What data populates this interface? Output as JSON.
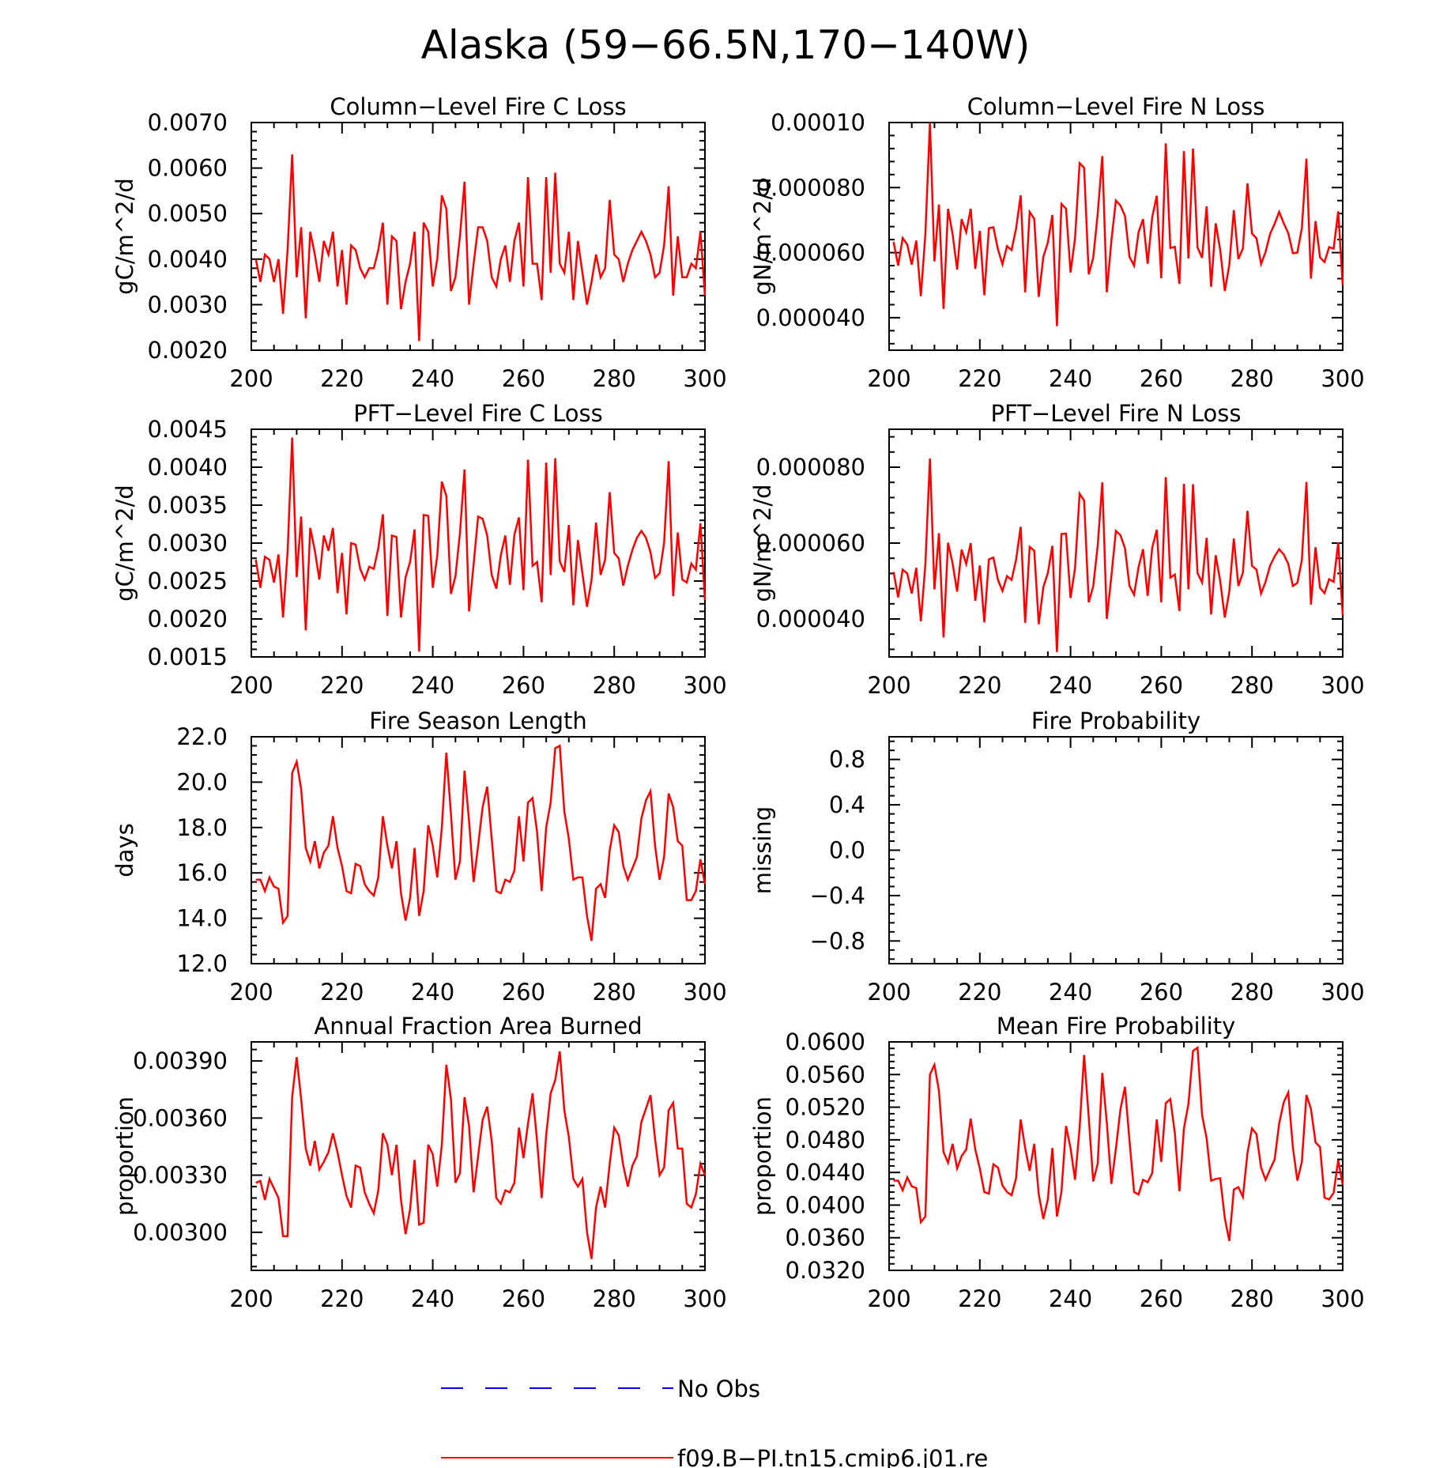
{
  "title": "Alaska (59−66.5N,170−140W)",
  "colors": {
    "model": "#ff0000",
    "obs": "#0000ff",
    "axis": "#000000"
  },
  "legend": {
    "entries": [
      {
        "label": "No Obs",
        "style": "dashed",
        "color": "#0000ff"
      },
      {
        "label": "f09.B−PI.tn15.cmip6.j01.re",
        "style": "solid",
        "color": "#ff0000"
      }
    ]
  },
  "chart_data": [
    {
      "type": "line",
      "title": "Column−Level Fire C Loss",
      "ylabel": "gC/m^2/d",
      "xlim": [
        200,
        300
      ],
      "ylim": [
        0.002,
        0.007
      ],
      "x_ticks": [
        200,
        220,
        240,
        260,
        280,
        300
      ],
      "y_ticks": [
        0.002,
        0.003,
        0.004,
        0.005,
        0.006,
        0.007
      ],
      "y_tick_labels": [
        "0.0020",
        "0.0030",
        "0.0040",
        "0.0050",
        "0.0060",
        "0.0070"
      ],
      "x_start": 201,
      "series": [
        {
          "values": [
            0.004,
            0.0035,
            0.0041,
            0.004,
            0.0035,
            0.004,
            0.0028,
            0.0042,
            0.0063,
            0.0036,
            0.0047,
            0.0027,
            0.0046,
            0.0041,
            0.0035,
            0.0044,
            0.0041,
            0.0046,
            0.0034,
            0.0042,
            0.003,
            0.0043,
            0.0042,
            0.0038,
            0.0036,
            0.0038,
            0.0038,
            0.0042,
            0.0048,
            0.003,
            0.0045,
            0.0044,
            0.0029,
            0.0035,
            0.0039,
            0.0046,
            0.0022,
            0.0048,
            0.0046,
            0.0034,
            0.004,
            0.0054,
            0.0051,
            0.0033,
            0.0036,
            0.0045,
            0.0057,
            0.003,
            0.0039,
            0.0047,
            0.0047,
            0.0044,
            0.0036,
            0.0034,
            0.004,
            0.0043,
            0.0035,
            0.0044,
            0.0048,
            0.0034,
            0.0058,
            0.0039,
            0.0039,
            0.0031,
            0.0058,
            0.0037,
            0.0059,
            0.0039,
            0.0037,
            0.0046,
            0.0031,
            0.0044,
            0.0037,
            0.003,
            0.0035,
            0.0041,
            0.0036,
            0.0038,
            0.0053,
            0.0041,
            0.004,
            0.0035,
            0.0039,
            0.0042,
            0.0044,
            0.0046,
            0.0044,
            0.0041,
            0.0036,
            0.0037,
            0.0043,
            0.0056,
            0.0032,
            0.0045,
            0.0036,
            0.0036,
            0.0039,
            0.0038,
            0.0046,
            0.0032
          ]
        }
      ]
    },
    {
      "type": "line",
      "title": "Column−Level Fire N Loss",
      "ylabel": "gN/m^2/d",
      "xlim": [
        200,
        300
      ],
      "ylim": [
        3e-05,
        0.0001
      ],
      "x_ticks": [
        200,
        220,
        240,
        260,
        280,
        300
      ],
      "y_ticks": [
        4e-05,
        6e-05,
        8e-05,
        0.0001
      ],
      "y_tick_labels": [
        "0.000040",
        "0.000060",
        "0.000080",
        "0.00010"
      ],
      "x_start": 201,
      "series": [
        {
          "values": [
            6.33e-05,
            5.6e-05,
            6.45e-05,
            6.25e-05,
            5.63e-05,
            6.37e-05,
            4.66e-05,
            6.56e-05,
            0.0001,
            5.73e-05,
            7.48e-05,
            4.27e-05,
            7.35e-05,
            6.56e-05,
            5.48e-05,
            7.03e-05,
            6.63e-05,
            7.35e-05,
            5.5e-05,
            6.67e-05,
            4.69e-05,
            6.75e-05,
            6.78e-05,
            6.1e-05,
            5.64e-05,
            6.2e-05,
            6.08e-05,
            6.74e-05,
            7.76e-05,
            4.78e-05,
            7.25e-05,
            7.04e-05,
            4.64e-05,
            5.87e-05,
            6.31e-05,
            7.16e-05,
            3.74e-05,
            7.5e-05,
            7.35e-05,
            5.39e-05,
            6.44e-05,
            8.75e-05,
            8.61e-05,
            5.33e-05,
            5.84e-05,
            7.2e-05,
            8.97e-05,
            4.78e-05,
            6.37e-05,
            7.6e-05,
            7.45e-05,
            7.13e-05,
            5.87e-05,
            5.6e-05,
            6.63e-05,
            7.03e-05,
            5.66e-05,
            7.08e-05,
            7.75e-05,
            5.21e-05,
            9.36e-05,
            6.14e-05,
            6.18e-05,
            5.04e-05,
            9.12e-05,
            5.82e-05,
            9.2e-05,
            6.16e-05,
            5.84e-05,
            7.42e-05,
            4.95e-05,
            6.9e-05,
            6.08e-05,
            4.82e-05,
            5.62e-05,
            7.31e-05,
            5.8e-05,
            6.13e-05,
            8.13e-05,
            6.59e-05,
            6.44e-05,
            5.65e-05,
            6.02e-05,
            6.58e-05,
            6.89e-05,
            7.25e-05,
            6.9e-05,
            6.6e-05,
            5.98e-05,
            6e-05,
            6.75e-05,
            8.89e-05,
            5.2e-05,
            6.97e-05,
            5.85e-05,
            5.71e-05,
            6.17e-05,
            6.12e-05,
            7.27e-05,
            5e-05
          ]
        }
      ]
    },
    {
      "type": "line",
      "title": "PFT−Level Fire C Loss",
      "ylabel": "gC/m^2/d",
      "xlim": [
        200,
        300
      ],
      "ylim": [
        0.0015,
        0.0045
      ],
      "x_ticks": [
        200,
        220,
        240,
        260,
        280,
        300
      ],
      "y_ticks": [
        0.0015,
        0.002,
        0.0025,
        0.003,
        0.0035,
        0.004,
        0.0045
      ],
      "y_tick_labels": [
        "0.0015",
        "0.0020",
        "0.0025",
        "0.0030",
        "0.0035",
        "0.0040",
        "0.0045"
      ],
      "x_start": 201,
      "series": [
        {
          "values": [
            0.00278,
            0.00241,
            0.00282,
            0.00278,
            0.00248,
            0.00285,
            0.00202,
            0.00288,
            0.00439,
            0.00255,
            0.00335,
            0.00185,
            0.0032,
            0.0029,
            0.00252,
            0.0031,
            0.0029,
            0.0032,
            0.00234,
            0.00287,
            0.00206,
            0.003,
            0.00298,
            0.00266,
            0.00252,
            0.00269,
            0.00266,
            0.00293,
            0.00338,
            0.00204,
            0.0031,
            0.00308,
            0.00202,
            0.00255,
            0.00275,
            0.00318,
            0.00157,
            0.00337,
            0.00336,
            0.00241,
            0.00283,
            0.00381,
            0.00362,
            0.00233,
            0.00256,
            0.00313,
            0.00397,
            0.0021,
            0.00272,
            0.00335,
            0.00332,
            0.0031,
            0.00258,
            0.0024,
            0.00284,
            0.0031,
            0.00245,
            0.00311,
            0.00334,
            0.00238,
            0.0041,
            0.0027,
            0.00275,
            0.00222,
            0.00406,
            0.00258,
            0.00412,
            0.00276,
            0.00262,
            0.00324,
            0.00218,
            0.00304,
            0.0026,
            0.00216,
            0.00251,
            0.00327,
            0.00258,
            0.00278,
            0.00367,
            0.00287,
            0.0028,
            0.00244,
            0.0027,
            0.00291,
            0.00307,
            0.00316,
            0.00307,
            0.00288,
            0.00254,
            0.0026,
            0.003,
            0.00408,
            0.0023,
            0.00314,
            0.00252,
            0.00248,
            0.00273,
            0.00265,
            0.00326,
            0.00225
          ]
        }
      ]
    },
    {
      "type": "line",
      "title": "PFT−Level Fire N Loss",
      "ylabel": "gN/m^2/d",
      "xlim": [
        200,
        300
      ],
      "ylim": [
        3e-05,
        9e-05
      ],
      "x_ticks": [
        200,
        220,
        240,
        260,
        280,
        300
      ],
      "y_ticks": [
        4e-05,
        6e-05,
        8e-05
      ],
      "y_tick_labels": [
        "0.000040",
        "0.000060",
        "0.000080"
      ],
      "x_start": 201,
      "series": [
        {
          "values": [
            5.24e-05,
            4.57e-05,
            5.3e-05,
            5.2e-05,
            4.67e-05,
            5.35e-05,
            3.94e-05,
            5.43e-05,
            8.23e-05,
            4.78e-05,
            6.26e-05,
            3.51e-05,
            6.01e-05,
            5.46e-05,
            4.72e-05,
            5.83e-05,
            5.45e-05,
            6e-05,
            4.48e-05,
            5.41e-05,
            3.91e-05,
            5.57e-05,
            5.62e-05,
            5.03e-05,
            4.74e-05,
            5.13e-05,
            5.03e-05,
            5.56e-05,
            6.43e-05,
            3.9e-05,
            5.9e-05,
            5.8e-05,
            3.86e-05,
            4.84e-05,
            5.21e-05,
            5.93e-05,
            3.13e-05,
            6.24e-05,
            6.25e-05,
            4.55e-05,
            5.34e-05,
            7.3e-05,
            7.12e-05,
            4.44e-05,
            4.86e-05,
            5.94e-05,
            7.6e-05,
            4e-05,
            5.13e-05,
            6.32e-05,
            6.21e-05,
            5.86e-05,
            4.87e-05,
            4.64e-05,
            5.37e-05,
            5.84e-05,
            4.61e-05,
            5.87e-05,
            6.35e-05,
            4.44e-05,
            7.74e-05,
            5.09e-05,
            5.17e-05,
            4.21e-05,
            7.56e-05,
            4.78e-05,
            7.55e-05,
            5.21e-05,
            4.96e-05,
            6.14e-05,
            4.12e-05,
            5.68e-05,
            5e-05,
            4.04e-05,
            4.72e-05,
            6.12e-05,
            4.87e-05,
            5.22e-05,
            6.85e-05,
            5.4e-05,
            5.3e-05,
            4.67e-05,
            4.98e-05,
            5.41e-05,
            5.65e-05,
            5.84e-05,
            5.7e-05,
            5.45e-05,
            4.87e-05,
            4.95e-05,
            5.55e-05,
            7.61e-05,
            4.38e-05,
            5.89e-05,
            4.82e-05,
            4.68e-05,
            5.05e-05,
            4.98e-05,
            6.02e-05,
            4.1e-05
          ]
        }
      ]
    },
    {
      "type": "line",
      "title": "Fire Season Length",
      "ylabel": "days",
      "xlim": [
        200,
        300
      ],
      "ylim": [
        12.0,
        22.0
      ],
      "x_ticks": [
        200,
        220,
        240,
        260,
        280,
        300
      ],
      "y_ticks": [
        12,
        14,
        16,
        18,
        20,
        22
      ],
      "y_tick_labels": [
        "12.0",
        "14.0",
        "16.0",
        "18.0",
        "20.0",
        "22.0"
      ],
      "x_start": 201,
      "series": [
        {
          "values": [
            15.7,
            15.7,
            15.2,
            15.8,
            15.4,
            15.3,
            13.8,
            14.1,
            20.4,
            20.9,
            19.7,
            17.1,
            16.5,
            17.4,
            16.2,
            16.9,
            17.2,
            18.5,
            17.1,
            16.3,
            15.2,
            15.1,
            16.4,
            16.3,
            15.5,
            15.2,
            15.0,
            15.8,
            18.5,
            17.2,
            16.2,
            17.4,
            15.1,
            13.9,
            14.9,
            17.1,
            14.1,
            15.2,
            18.1,
            17.2,
            15.8,
            18.0,
            21.3,
            18.6,
            15.7,
            16.5,
            20.5,
            18.3,
            15.6,
            17.2,
            18.9,
            19.8,
            17.5,
            15.2,
            15.1,
            15.7,
            15.6,
            16.1,
            18.5,
            16.5,
            19.1,
            19.3,
            17.8,
            15.2,
            18.0,
            19.1,
            21.5,
            21.6,
            18.7,
            17.5,
            15.7,
            15.8,
            15.8,
            14.1,
            13.0,
            15.3,
            15.5,
            14.9,
            17.0,
            18.1,
            17.8,
            16.3,
            15.7,
            16.2,
            16.7,
            18.4,
            19.2,
            19.6,
            17.2,
            15.7,
            16.7,
            19.5,
            18.9,
            17.4,
            17.2,
            14.8,
            14.8,
            15.2,
            16.6,
            15.5
          ]
        }
      ]
    },
    {
      "type": "line",
      "title": "Fire Probability",
      "ylabel": "missing",
      "xlim": [
        200,
        300
      ],
      "ylim": [
        -1.0,
        1.0
      ],
      "x_ticks": [
        200,
        220,
        240,
        260,
        280,
        300
      ],
      "y_ticks": [
        -0.8,
        -0.4,
        0.0,
        0.4,
        0.8
      ],
      "y_tick_labels": [
        "−0.8",
        "−0.4",
        "0.0",
        "0.4",
        "0.8"
      ],
      "x_start": 201,
      "series": []
    },
    {
      "type": "line",
      "title": "Annual Fraction Area Burned",
      "ylabel": "proportion",
      "xlim": [
        200,
        300
      ],
      "ylim": [
        0.0028,
        0.004
      ],
      "x_ticks": [
        200,
        220,
        240,
        260,
        280,
        300
      ],
      "y_ticks": [
        0.003,
        0.0033,
        0.0036,
        0.0039
      ],
      "y_tick_labels": [
        "0.00300",
        "0.00330",
        "0.00360",
        "0.00390"
      ],
      "x_start": 201,
      "series": [
        {
          "values": [
            0.00326,
            0.00327,
            0.00317,
            0.00328,
            0.00323,
            0.00318,
            0.00298,
            0.00298,
            0.00371,
            0.00392,
            0.0037,
            0.00344,
            0.00335,
            0.00348,
            0.00333,
            0.00337,
            0.00342,
            0.00352,
            0.00342,
            0.0033,
            0.00319,
            0.00313,
            0.00335,
            0.00334,
            0.00321,
            0.00315,
            0.0031,
            0.00322,
            0.00352,
            0.00346,
            0.0033,
            0.00346,
            0.00317,
            0.00299,
            0.00312,
            0.00338,
            0.00304,
            0.00305,
            0.00346,
            0.00341,
            0.00324,
            0.00346,
            0.00388,
            0.0037,
            0.00326,
            0.00331,
            0.00371,
            0.00356,
            0.00321,
            0.0034,
            0.00359,
            0.00366,
            0.00348,
            0.00318,
            0.00315,
            0.00322,
            0.00321,
            0.00326,
            0.00355,
            0.00339,
            0.00357,
            0.00373,
            0.00348,
            0.00318,
            0.00351,
            0.00373,
            0.0038,
            0.00395,
            0.00364,
            0.0035,
            0.00328,
            0.00324,
            0.00328,
            0.003,
            0.00286,
            0.00313,
            0.00324,
            0.00313,
            0.00336,
            0.00355,
            0.00351,
            0.00335,
            0.00324,
            0.00335,
            0.0034,
            0.00358,
            0.00365,
            0.00372,
            0.00349,
            0.0033,
            0.00334,
            0.00364,
            0.00368,
            0.00344,
            0.00344,
            0.00315,
            0.00313,
            0.0032,
            0.00336,
            0.0033
          ]
        }
      ]
    },
    {
      "type": "line",
      "title": "Mean Fire Probability",
      "ylabel": "proportion",
      "xlim": [
        200,
        300
      ],
      "ylim": [
        0.032,
        0.06
      ],
      "x_ticks": [
        200,
        220,
        240,
        260,
        280,
        300
      ],
      "y_ticks": [
        0.032,
        0.036,
        0.04,
        0.044,
        0.048,
        0.052,
        0.056,
        0.06
      ],
      "y_tick_labels": [
        "0.0320",
        "0.0360",
        "0.0400",
        "0.0440",
        "0.0480",
        "0.0520",
        "0.0560",
        "0.0600"
      ],
      "x_start": 201,
      "series": [
        {
          "values": [
            0.043,
            0.043,
            0.0418,
            0.0434,
            0.0423,
            0.0421,
            0.0379,
            0.0386,
            0.056,
            0.0572,
            0.054,
            0.0465,
            0.0452,
            0.0475,
            0.0445,
            0.046,
            0.0468,
            0.0506,
            0.0468,
            0.0445,
            0.0416,
            0.0414,
            0.045,
            0.0446,
            0.0424,
            0.0416,
            0.0412,
            0.0433,
            0.0505,
            0.047,
            0.0442,
            0.0475,
            0.0413,
            0.0383,
            0.0407,
            0.047,
            0.0386,
            0.0416,
            0.0497,
            0.047,
            0.0431,
            0.0495,
            0.0584,
            0.0508,
            0.0429,
            0.0451,
            0.0562,
            0.0501,
            0.0426,
            0.0469,
            0.0517,
            0.0545,
            0.0479,
            0.0416,
            0.0413,
            0.0431,
            0.0428,
            0.0439,
            0.0505,
            0.0453,
            0.0525,
            0.053,
            0.0488,
            0.0417,
            0.0494,
            0.0524,
            0.0589,
            0.0593,
            0.051,
            0.0482,
            0.043,
            0.0432,
            0.0433,
            0.0384,
            0.0356,
            0.0419,
            0.0422,
            0.041,
            0.0464,
            0.0494,
            0.0487,
            0.0446,
            0.0431,
            0.0444,
            0.0456,
            0.05,
            0.0526,
            0.0538,
            0.0471,
            0.043,
            0.0453,
            0.0535,
            0.0518,
            0.0477,
            0.0471,
            0.0409,
            0.0407,
            0.0415,
            0.0455,
            0.0425
          ]
        }
      ]
    }
  ]
}
